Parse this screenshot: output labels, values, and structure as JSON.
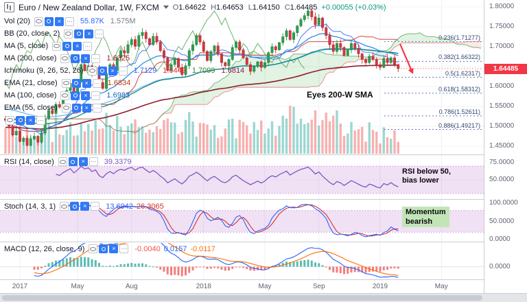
{
  "header": {
    "title": "Euro / New Zealand Dollar, 1W, FXCM",
    "ohlc": [
      {
        "label": "O",
        "value": "1.64622"
      },
      {
        "label": "H",
        "value": "1.64653"
      },
      {
        "label": "L",
        "value": "1.64150"
      },
      {
        "label": "C",
        "value": "1.64485"
      }
    ],
    "change": "+0.00055 (+0.03%)"
  },
  "legend_rows": [
    {
      "label": "Vol (20)",
      "values": [
        {
          "text": "55.87K",
          "color": "#2962ff"
        },
        {
          "text": "1.575M",
          "color": "#787b86"
        }
      ]
    },
    {
      "label": "BB (20, close, 2)",
      "values": []
    },
    {
      "label": "MA (5, close)",
      "values": []
    },
    {
      "label": "MA (200, close)",
      "values": [
        {
          "text": "1.6325",
          "color": "#b01822"
        }
      ]
    },
    {
      "label": "Ichimoku (9, 26, 52, 26)",
      "values": [
        {
          "text": "1.7129",
          "color": "#2962ff"
        },
        {
          "text": "1.6449",
          "color": "#d32f2f"
        },
        {
          "text": "1.7099",
          "color": "#2e7d32"
        },
        {
          "text": "1.6814",
          "color": "#8e1b4e"
        }
      ]
    },
    {
      "label": "EMA (21, close)",
      "values": [
        {
          "text": "1.6834",
          "color": "#bf360c"
        }
      ]
    },
    {
      "label": "MA (100, close)",
      "values": [
        {
          "text": "1.6983",
          "color": "#1565c0"
        }
      ]
    },
    {
      "label": "EMA (55, close)",
      "values": []
    },
    {
      "label": "",
      "values": []
    }
  ],
  "price_axis": {
    "labels": [
      "1.80000",
      "1.75000",
      "1.70000",
      "1.60000",
      "1.55000",
      "1.50000",
      "1.45000"
    ],
    "label_prices": [
      1.8,
      1.75,
      1.7,
      1.6,
      1.55,
      1.5,
      1.45
    ],
    "badge": {
      "text": "1.64485",
      "price": 1.64485,
      "color": "#f23645"
    }
  },
  "fib": {
    "color": "#32476e",
    "levels": [
      {
        "label": "0.236(1.71277)",
        "price": 1.71277
      },
      {
        "label": "0.382(1.66322)",
        "price": 1.66322
      },
      {
        "label": "0.5(1.62317)",
        "price": 1.62317
      },
      {
        "label": "0.618(1.58312)",
        "price": 1.58312
      },
      {
        "label": "0.786(1.52611)",
        "price": 1.52611
      },
      {
        "label": "0.886(1.49217)",
        "price": 1.49217
      }
    ]
  },
  "annotations": {
    "main": "Eyes 200-W SMA",
    "rsi_line1": "RSI below 50,",
    "rsi_line2": "bias lower",
    "stoch_line1": "Momentum",
    "stoch_line2": "bearish"
  },
  "rsi_panel": {
    "label": "RSI (14, close)",
    "value": "39.3379",
    "axis": [
      {
        "text": "75.0000",
        "v": 75
      },
      {
        "text": "50.0000",
        "v": 50
      }
    ]
  },
  "stoch_panel": {
    "label": "Stoch (14, 3, 1)",
    "values": [
      {
        "text": "13.6942",
        "color": "#2962ff"
      },
      {
        "text": "26.3065",
        "color": "#d32f2f"
      }
    ],
    "axis": [
      {
        "text": "100.0000",
        "v": 100
      },
      {
        "text": "50.0000",
        "v": 50
      },
      {
        "text": "0.0000",
        "v": 0
      }
    ]
  },
  "macd_panel": {
    "label": "MACD (12, 26, close, 9)",
    "values": [
      {
        "text": "-0.0040",
        "color": "#ef5350"
      },
      {
        "text": "0.0157",
        "color": "#2962ff"
      },
      {
        "text": "-0.0117",
        "color": "#ff6d00"
      }
    ],
    "axis": [
      {
        "text": "0.0000",
        "v": 0
      }
    ]
  },
  "time_axis": {
    "labels": [
      {
        "text": "2017",
        "week": 4
      },
      {
        "text": "May",
        "week": 20
      },
      {
        "text": "Aug",
        "week": 35
      },
      {
        "text": "2018",
        "week": 55
      },
      {
        "text": "May",
        "week": 72
      },
      {
        "text": "Sep",
        "week": 87
      },
      {
        "text": "2019",
        "week": 104
      },
      {
        "text": "May",
        "week": 121
      }
    ]
  },
  "chart_data": {
    "type": "candlestick",
    "symbol": "EUR/NZD",
    "timeframe": "1W",
    "exchange": "FXCM",
    "title": "Euro / New Zealand Dollar, 1W, FXCM",
    "price_range": [
      1.45,
      1.8
    ],
    "x_range": [
      "2017-01",
      "2019-02"
    ],
    "ohlc_last": {
      "o": 1.64622,
      "h": 1.64653,
      "l": 1.6415,
      "c": 1.64485
    },
    "last_price": 1.64485,
    "closes": [
      1.515,
      1.5,
      1.478,
      1.488,
      1.462,
      1.47,
      1.452,
      1.468,
      1.475,
      1.46,
      1.483,
      1.52,
      1.54,
      1.532,
      1.555,
      1.548,
      1.571,
      1.59,
      1.608,
      1.585,
      1.612,
      1.655,
      1.64,
      1.652,
      1.63,
      1.648,
      1.61,
      1.595,
      1.632,
      1.655,
      1.64,
      1.672,
      1.69,
      1.684,
      1.705,
      1.718,
      1.701,
      1.728,
      1.736,
      1.72,
      1.705,
      1.726,
      1.712,
      1.69,
      1.672,
      1.64,
      1.655,
      1.67,
      1.648,
      1.63,
      1.652,
      1.69,
      1.705,
      1.728,
      1.712,
      1.688,
      1.665,
      1.688,
      1.702,
      1.682,
      1.66,
      1.652,
      1.668,
      1.698,
      1.712,
      1.692,
      1.672,
      1.655,
      1.638,
      1.65,
      1.662,
      1.648,
      1.66,
      1.685,
      1.7,
      1.692,
      1.71,
      1.725,
      1.74,
      1.718,
      1.735,
      1.752,
      1.768,
      1.778,
      1.79,
      1.775,
      1.755,
      1.772,
      1.748,
      1.728,
      1.705,
      1.688,
      1.708,
      1.698,
      1.678,
      1.692,
      1.708,
      1.696,
      1.682,
      1.668,
      1.66,
      1.676,
      1.668,
      1.655,
      1.648,
      1.67,
      1.66,
      1.672,
      1.655,
      1.64485
    ],
    "fib_levels": [
      1.71277,
      1.66322,
      1.62317,
      1.58312,
      1.52611,
      1.49217
    ],
    "indicators_shown": [
      "Vol (20)",
      "BB (20, close, 2)",
      "MA (5, close)",
      "MA (200, close)",
      "Ichimoku (9, 26, 52, 26)",
      "EMA (21, close)",
      "MA (100, close)",
      "EMA (55, close)",
      "RSI (14, close)",
      "Stoch (14, 3, 1)",
      "MACD (12, 26, close, 9)"
    ],
    "rsi_last": 39.3379,
    "stoch_last": [
      13.6942,
      26.3065
    ],
    "macd_last": [
      -0.004,
      0.0157,
      -0.0117
    ],
    "colors": {
      "up": "#2f9e4f",
      "down": "#d1383d",
      "badge": "#f23645",
      "rsi": "#7e57c2"
    }
  }
}
